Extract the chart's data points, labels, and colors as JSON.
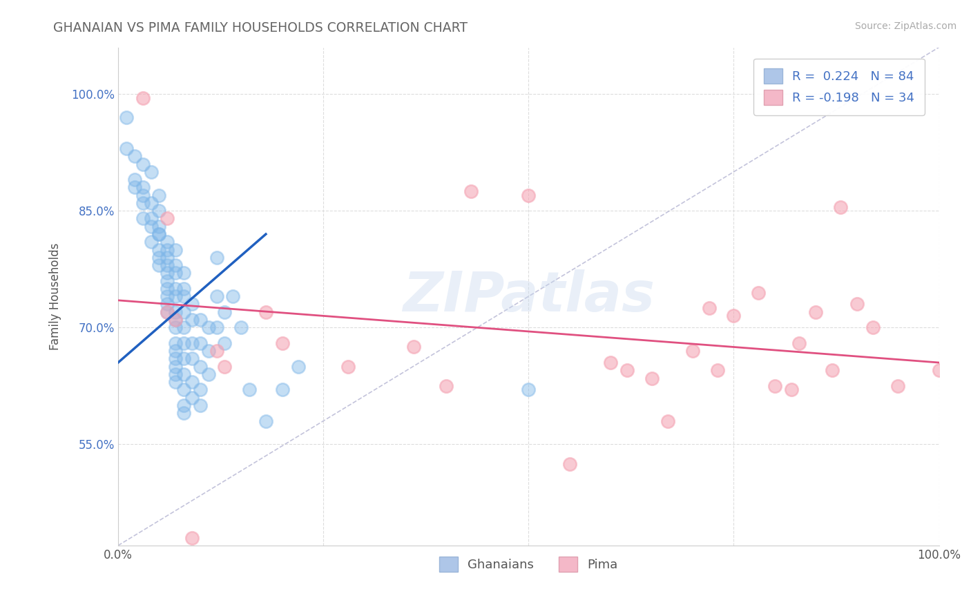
{
  "title": "GHANAIAN VS PIMA FAMILY HOUSEHOLDS CORRELATION CHART",
  "source": "Source: ZipAtlas.com",
  "ylabel": "Family Households",
  "xlim": [
    0.0,
    1.0
  ],
  "ylim": [
    0.42,
    1.06
  ],
  "ytick_positions": [
    0.55,
    0.7,
    0.85,
    1.0
  ],
  "ghanaian_color": "#7EB6E8",
  "pima_color": "#F4A0B0",
  "ghanaian_line_color": "#2060C0",
  "pima_line_color": "#E05080",
  "diagonal_color": "#AAAACC",
  "r_ghanaian": 0.224,
  "n_ghanaian": 84,
  "r_pima": -0.198,
  "n_pima": 34,
  "ghanaian_scatter": [
    [
      0.01,
      0.97
    ],
    [
      0.01,
      0.93
    ],
    [
      0.02,
      0.92
    ],
    [
      0.02,
      0.89
    ],
    [
      0.02,
      0.88
    ],
    [
      0.03,
      0.91
    ],
    [
      0.03,
      0.87
    ],
    [
      0.03,
      0.86
    ],
    [
      0.03,
      0.88
    ],
    [
      0.03,
      0.84
    ],
    [
      0.04,
      0.9
    ],
    [
      0.04,
      0.86
    ],
    [
      0.04,
      0.84
    ],
    [
      0.04,
      0.83
    ],
    [
      0.04,
      0.81
    ],
    [
      0.05,
      0.87
    ],
    [
      0.05,
      0.85
    ],
    [
      0.05,
      0.83
    ],
    [
      0.05,
      0.82
    ],
    [
      0.05,
      0.8
    ],
    [
      0.05,
      0.78
    ],
    [
      0.05,
      0.82
    ],
    [
      0.05,
      0.79
    ],
    [
      0.06,
      0.81
    ],
    [
      0.06,
      0.79
    ],
    [
      0.06,
      0.78
    ],
    [
      0.06,
      0.77
    ],
    [
      0.06,
      0.75
    ],
    [
      0.06,
      0.74
    ],
    [
      0.06,
      0.73
    ],
    [
      0.06,
      0.72
    ],
    [
      0.06,
      0.76
    ],
    [
      0.06,
      0.8
    ],
    [
      0.07,
      0.8
    ],
    [
      0.07,
      0.78
    ],
    [
      0.07,
      0.77
    ],
    [
      0.07,
      0.75
    ],
    [
      0.07,
      0.74
    ],
    [
      0.07,
      0.72
    ],
    [
      0.07,
      0.71
    ],
    [
      0.07,
      0.7
    ],
    [
      0.07,
      0.68
    ],
    [
      0.07,
      0.67
    ],
    [
      0.07,
      0.66
    ],
    [
      0.07,
      0.65
    ],
    [
      0.07,
      0.64
    ],
    [
      0.07,
      0.63
    ],
    [
      0.08,
      0.77
    ],
    [
      0.08,
      0.75
    ],
    [
      0.08,
      0.74
    ],
    [
      0.08,
      0.72
    ],
    [
      0.08,
      0.7
    ],
    [
      0.08,
      0.68
    ],
    [
      0.08,
      0.66
    ],
    [
      0.08,
      0.64
    ],
    [
      0.08,
      0.62
    ],
    [
      0.08,
      0.6
    ],
    [
      0.08,
      0.59
    ],
    [
      0.09,
      0.73
    ],
    [
      0.09,
      0.71
    ],
    [
      0.09,
      0.68
    ],
    [
      0.09,
      0.66
    ],
    [
      0.09,
      0.63
    ],
    [
      0.09,
      0.61
    ],
    [
      0.1,
      0.71
    ],
    [
      0.1,
      0.68
    ],
    [
      0.1,
      0.65
    ],
    [
      0.1,
      0.62
    ],
    [
      0.1,
      0.6
    ],
    [
      0.11,
      0.7
    ],
    [
      0.11,
      0.67
    ],
    [
      0.11,
      0.64
    ],
    [
      0.12,
      0.79
    ],
    [
      0.12,
      0.74
    ],
    [
      0.12,
      0.7
    ],
    [
      0.13,
      0.72
    ],
    [
      0.13,
      0.68
    ],
    [
      0.14,
      0.74
    ],
    [
      0.15,
      0.7
    ],
    [
      0.16,
      0.62
    ],
    [
      0.18,
      0.58
    ],
    [
      0.2,
      0.62
    ],
    [
      0.22,
      0.65
    ],
    [
      0.5,
      0.62
    ]
  ],
  "pima_scatter": [
    [
      0.03,
      0.995
    ],
    [
      0.06,
      0.84
    ],
    [
      0.06,
      0.72
    ],
    [
      0.07,
      0.71
    ],
    [
      0.09,
      0.43
    ],
    [
      0.12,
      0.67
    ],
    [
      0.13,
      0.65
    ],
    [
      0.18,
      0.72
    ],
    [
      0.2,
      0.68
    ],
    [
      0.28,
      0.65
    ],
    [
      0.36,
      0.675
    ],
    [
      0.4,
      0.625
    ],
    [
      0.43,
      0.875
    ],
    [
      0.5,
      0.87
    ],
    [
      0.55,
      0.525
    ],
    [
      0.6,
      0.655
    ],
    [
      0.62,
      0.645
    ],
    [
      0.65,
      0.635
    ],
    [
      0.67,
      0.58
    ],
    [
      0.7,
      0.67
    ],
    [
      0.72,
      0.725
    ],
    [
      0.73,
      0.645
    ],
    [
      0.75,
      0.715
    ],
    [
      0.78,
      0.745
    ],
    [
      0.8,
      0.625
    ],
    [
      0.82,
      0.62
    ],
    [
      0.83,
      0.68
    ],
    [
      0.85,
      0.72
    ],
    [
      0.87,
      0.645
    ],
    [
      0.88,
      0.855
    ],
    [
      0.9,
      0.73
    ],
    [
      0.92,
      0.7
    ],
    [
      0.95,
      0.625
    ],
    [
      1.0,
      0.645
    ]
  ],
  "watermark": "ZIPatlas",
  "background_color": "#FFFFFF",
  "grid_color": "#DDDDDD",
  "ghanaian_trend_x": [
    0.0,
    0.18
  ],
  "ghanaian_trend_y": [
    0.655,
    0.82
  ],
  "pima_trend_x": [
    0.0,
    1.0
  ],
  "pima_trend_y": [
    0.735,
    0.655
  ]
}
